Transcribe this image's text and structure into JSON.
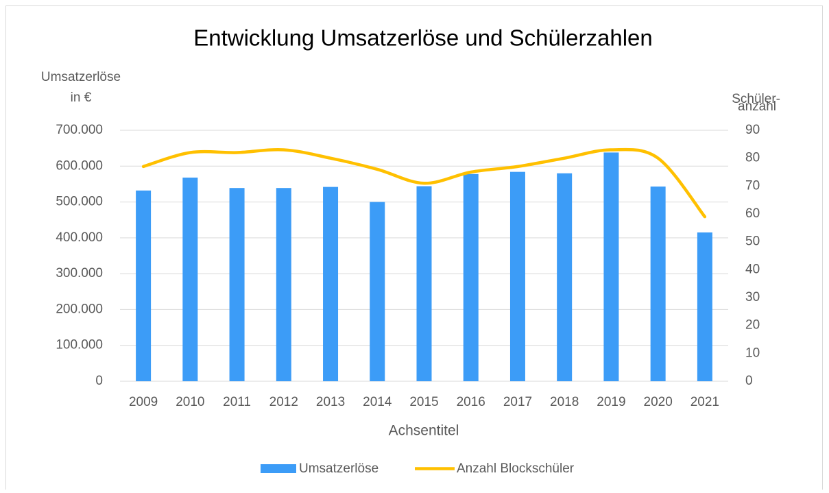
{
  "chart_data": {
    "type": "bar",
    "title": "Entwicklung Umsatzerlöse und Schülerzahlen",
    "y_label": [
      "Umsatzerlöse",
      "in €"
    ],
    "y2_label": [
      "Schüler-",
      "anzahl"
    ],
    "x_label": "Achsentitel",
    "categories": [
      "2009",
      "2010",
      "2011",
      "2012",
      "2013",
      "2014",
      "2015",
      "2016",
      "2017",
      "2018",
      "2019",
      "2020",
      "2021"
    ],
    "series": [
      {
        "name": "Umsatzerlöse",
        "type": "bar",
        "color": "#3c9cf7",
        "values": [
          532000,
          568000,
          539000,
          539000,
          542000,
          500000,
          544000,
          578000,
          584000,
          580000,
          638000,
          543000,
          415000
        ]
      },
      {
        "name": "Anzahl Blockschüler",
        "type": "line",
        "axis": "y2",
        "color": "#ffc000",
        "values": [
          77,
          82,
          82,
          83,
          80,
          76,
          71,
          75,
          77,
          80,
          83,
          80,
          59
        ]
      }
    ],
    "ylim": [
      0,
      700000
    ],
    "yticks": [
      0,
      {
        "value": 100000,
        "label": "100.000"
      },
      {
        "value": 200000,
        "label": "200.000"
      },
      {
        "value": 300000,
        "label": "300.000"
      },
      {
        "value": 400000,
        "label": "400.000"
      },
      {
        "value": 500000,
        "label": "500.000"
      },
      {
        "value": 600000,
        "label": "600.000"
      },
      {
        "value": 700000,
        "label": "700.000"
      }
    ],
    "y2lim": [
      0,
      90
    ],
    "y2ticks": [
      0,
      10,
      20,
      30,
      40,
      50,
      60,
      70,
      80,
      90
    ],
    "grid": true,
    "legend": "bottom"
  }
}
